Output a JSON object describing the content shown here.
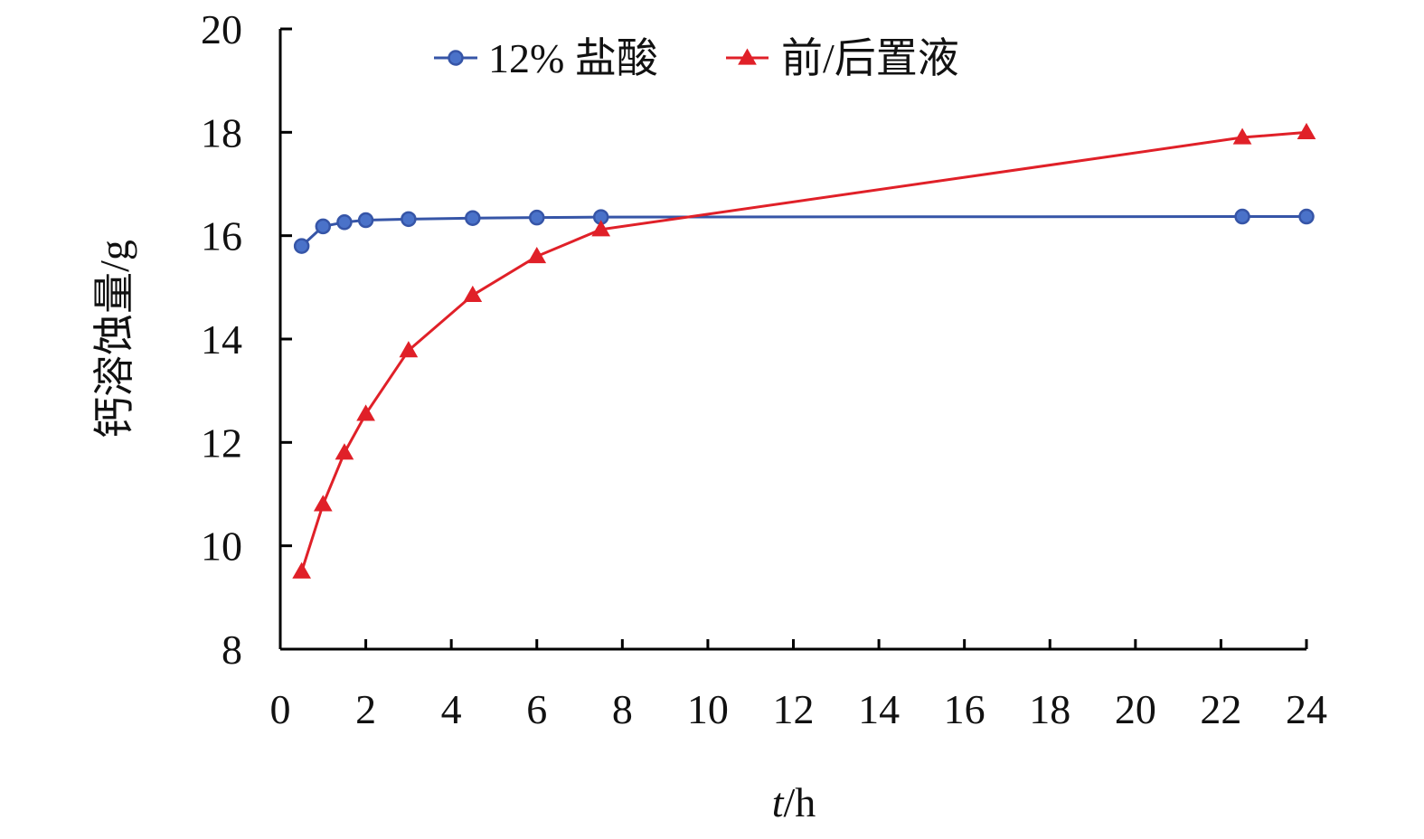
{
  "chart_data": {
    "type": "line",
    "xlabel_italic": "t",
    "xlabel_unit": "/h",
    "ylabel": "钙溶蚀量/g",
    "xlim": [
      0,
      24
    ],
    "ylim": [
      8,
      20
    ],
    "xticks": [
      0,
      2,
      4,
      6,
      8,
      10,
      12,
      14,
      16,
      18,
      20,
      22,
      24
    ],
    "yticks": [
      8,
      10,
      12,
      14,
      16,
      18,
      20
    ],
    "grid": false,
    "legend_position": "top",
    "series": [
      {
        "name": "12% 盐酸",
        "color": "#3655a7",
        "marker": "circle",
        "x": [
          0.5,
          1,
          1.5,
          2,
          3,
          4.5,
          6,
          7.5,
          22.5,
          24
        ],
        "y": [
          15.8,
          16.18,
          16.26,
          16.3,
          16.32,
          16.34,
          16.35,
          16.36,
          16.37,
          16.37
        ]
      },
      {
        "name": "前/后置液",
        "color": "#e02028",
        "marker": "triangle",
        "x": [
          0.5,
          1,
          1.5,
          2,
          3,
          4.5,
          6,
          7.5,
          22.5,
          24
        ],
        "y": [
          9.5,
          10.8,
          11.8,
          12.55,
          13.78,
          14.85,
          15.6,
          16.12,
          17.9,
          18.0
        ]
      }
    ]
  }
}
